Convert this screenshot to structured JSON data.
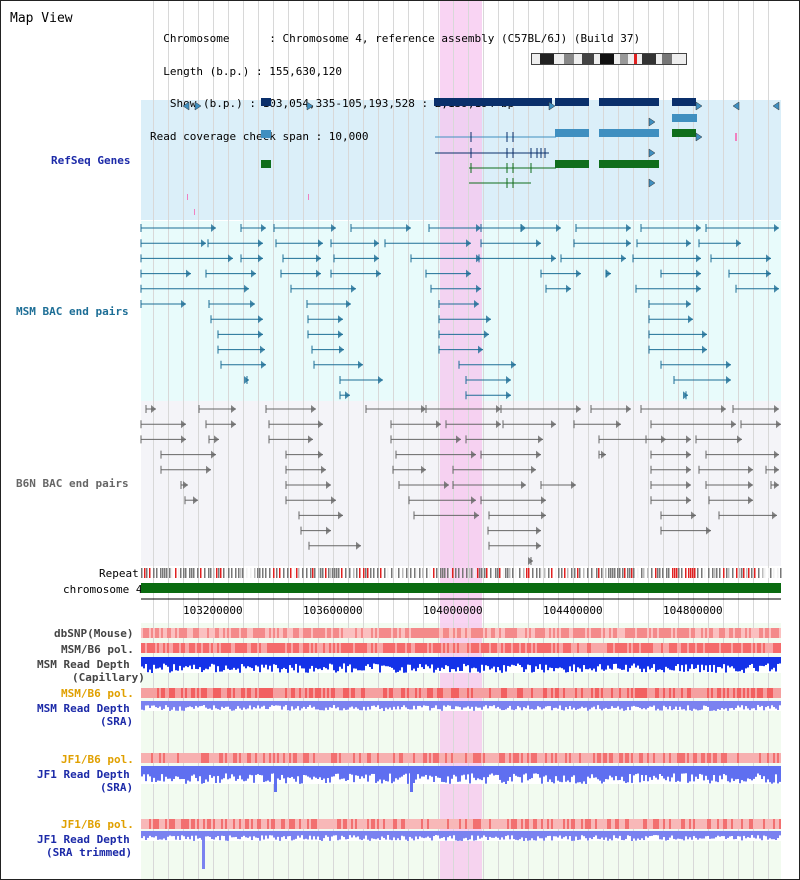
{
  "title": "Map View",
  "header": {
    "lines": [
      "  Chromosome      : Chromosome 4, reference assembly (C57BL/6J) (Build 37)",
      "  Length (b.p.) : 155,630,120",
      "   Show (b.p.) : 103,054,335-105,193,528 : 2,139,194 bp",
      "Read coverage check span : 10,000"
    ]
  },
  "tracks": {
    "refseq": "RefSeq Genes",
    "msm_bac": "MSM BAC end pairs",
    "b6n_bac": "B6N BAC end pairs",
    "repeat": "Repeat",
    "chromosome": "chromosome 4",
    "dbsnp": "dbSNP(Mouse)",
    "msm_b6_pol": "MSM/B6 pol.",
    "msm_read_depth_cap_1": "MSM Read Depth",
    "msm_read_depth_cap_2": "(Capillary)",
    "msm_b6_pol_sra": "MSM/B6 pol.",
    "msm_read_depth_sra_1": "MSM Read Depth",
    "msm_read_depth_sra_2": "(SRA)",
    "jf1_b6_pol": "JF1/B6 pol.",
    "jf1_read_depth_1": "JF1 Read Depth",
    "jf1_read_depth_2": "(SRA)",
    "jf1_b6_pol_2": "JF1/B6 pol.",
    "jf1_trimmed_1": "JF1 Read Depth",
    "jf1_trimmed_2": "(SRA trimmed)"
  },
  "axis": {
    "ticks": [
      "103200000",
      "103600000",
      "104000000",
      "104400000",
      "104800000"
    ]
  },
  "colors": {
    "refseq_bg": "#dbeff9",
    "msm_bg": "#e8fbfb",
    "b6n_bg": "#f4f4f8",
    "gene_dark": "#0a2f6b",
    "gene_light": "#3f8fc0",
    "gene_green": "#0f6e1c",
    "bac_msm": "#1d6e96",
    "bac_b6n": "#666666",
    "label_blue": "#1c2aa8",
    "label_orange": "#e0a000",
    "highlight": "#f7c6ef"
  }
}
